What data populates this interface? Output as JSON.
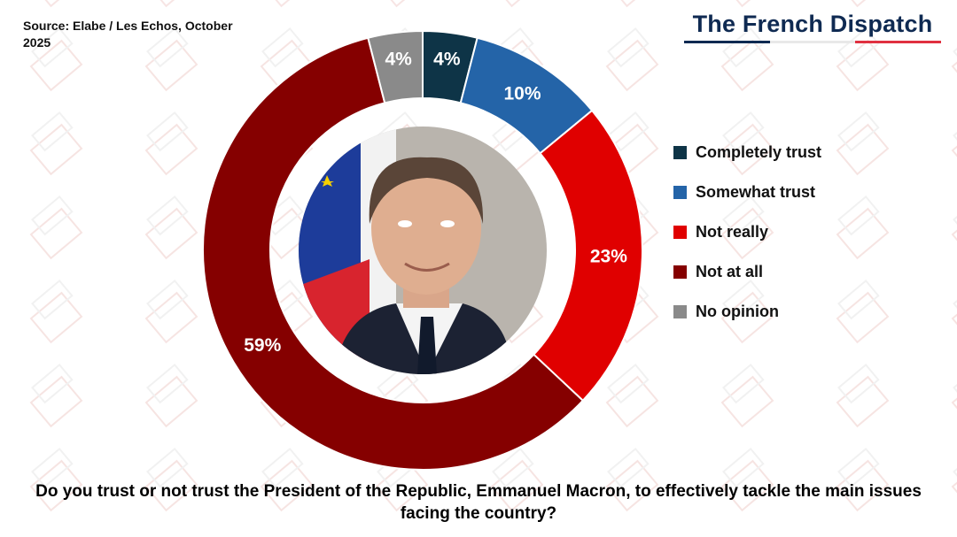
{
  "source": "Source: Elabe / Les Echos, October 2025",
  "logo": {
    "text": "The French Dispatch",
    "colors": [
      "#0f2a52",
      "#e8e8e8",
      "#e03040"
    ]
  },
  "question": "Do you trust or not trust the President of the Republic, Emmanuel Macron, to effectively tackle the main issues facing the country?",
  "chart_data": {
    "type": "pie",
    "variant": "donut",
    "start": "top, clockwise",
    "categories": [
      "Completely trust",
      "Somewhat trust",
      "Not really",
      "Not at all",
      "No opinion"
    ],
    "values": [
      4,
      10,
      23,
      59,
      4
    ],
    "labels": [
      "4%",
      "10%",
      "23%",
      "59%",
      "4%"
    ],
    "colors": [
      "#0e3447",
      "#2464a8",
      "#e00000",
      "#850000",
      "#8a8a8a"
    ],
    "legend_position": "right",
    "center_image": "portrait of Emmanuel Macron"
  }
}
